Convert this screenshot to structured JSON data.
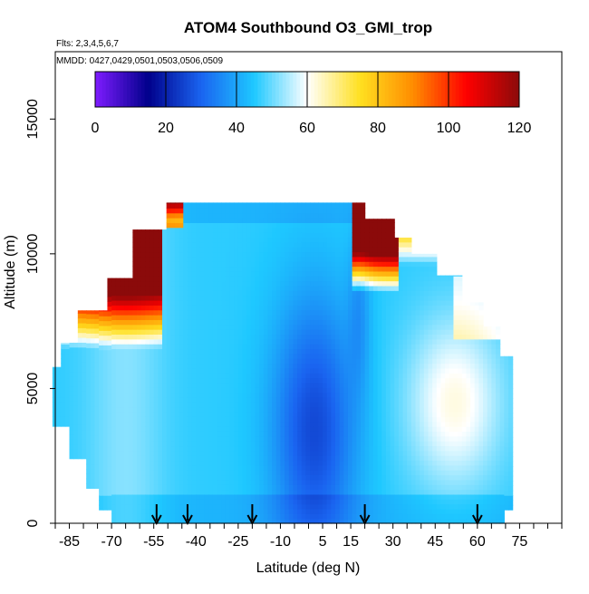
{
  "chart_data": {
    "type": "heatmap",
    "title": "ATOM4 Southbound O3_GMI_trop",
    "subtitle_flights": "Flts: 2,3,4,5,6,7",
    "subtitle_dates": "MMDD: 0427,0429,0501,0503,0506,0509",
    "xlabel": "Latitude (deg N)",
    "ylabel": "Altitude (m)",
    "xlim": [
      -90,
      90
    ],
    "ylim": [
      0,
      17500
    ],
    "x_ticks": [
      -85,
      -70,
      -55,
      -40,
      -25,
      -10,
      5,
      15,
      30,
      45,
      60,
      75
    ],
    "x_minor_step": 5,
    "y_ticks": [
      0,
      5000,
      10000,
      15000
    ],
    "colorbar": {
      "range": [
        0,
        120
      ],
      "ticks": [
        0,
        20,
        40,
        60,
        80,
        100,
        120
      ]
    },
    "profile_markers_lat": [
      -54,
      -43,
      -20,
      20,
      60
    ],
    "colormap": [
      "#7f1cff",
      "#00008b",
      "#1a64f0",
      "#1ec8ff",
      "#ffffff",
      "#ffe020",
      "#ff8c00",
      "#ff0000",
      "#8b0a0a"
    ]
  }
}
